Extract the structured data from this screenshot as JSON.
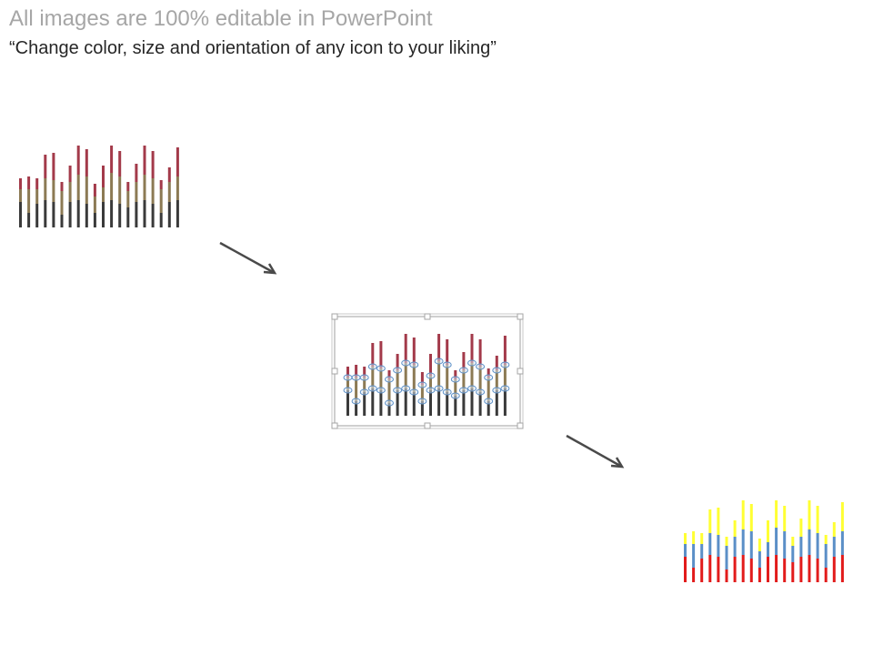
{
  "header": {
    "title": "All images are 100% editable in PowerPoint",
    "subtitle": "“Change color, size and orientation of any icon to your liking”"
  },
  "icon_states": [
    {
      "name": "original",
      "icon": "stacked-bar-chart-icon",
      "colors": [
        "#3a3a3a",
        "#8c7a54",
        "#a33a4a"
      ]
    },
    {
      "name": "editing",
      "icon": "stacked-bar-chart-icon",
      "colors": [
        "#3a3a3a",
        "#8c7a54",
        "#a33a4a"
      ],
      "selection_color": "#a6a6a6",
      "handle_color": "#5b8fc7"
    },
    {
      "name": "recolored",
      "icon": "stacked-bar-chart-icon",
      "colors": [
        "#e21b1b",
        "#5b8fc7",
        "#ffff33"
      ]
    }
  ],
  "bar_pattern": [
    [
      28,
      14,
      12
    ],
    [
      16,
      26,
      14
    ],
    [
      26,
      16,
      12
    ],
    [
      30,
      24,
      26
    ],
    [
      28,
      24,
      30
    ],
    [
      14,
      26,
      10
    ],
    [
      28,
      22,
      18
    ],
    [
      30,
      28,
      32
    ],
    [
      26,
      30,
      30
    ],
    [
      16,
      18,
      14
    ],
    [
      28,
      16,
      24
    ],
    [
      30,
      30,
      30
    ],
    [
      26,
      30,
      28
    ],
    [
      22,
      18,
      10
    ],
    [
      28,
      22,
      20
    ],
    [
      30,
      28,
      32
    ],
    [
      26,
      28,
      30
    ],
    [
      16,
      26,
      10
    ],
    [
      28,
      22,
      16
    ],
    [
      30,
      26,
      32
    ]
  ],
  "arrow_color": "#4a4a4a"
}
